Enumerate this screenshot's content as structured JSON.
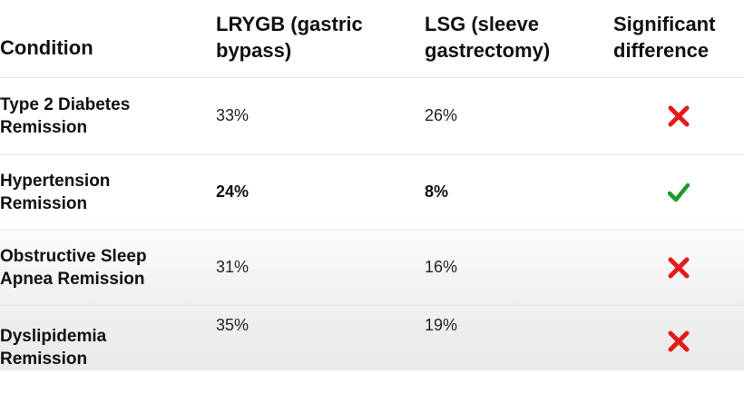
{
  "table": {
    "headers": {
      "condition": "Condition",
      "lrygb_line1": "LRYGB (gastric",
      "lrygb_line2": "bypass)",
      "lsg_line1": "LSG (sleeve",
      "lsg_line2": "gastrectomy)",
      "sig_line1": "Significant",
      "sig_line2": "difference"
    },
    "rows": [
      {
        "condition_line1": "Type 2 Diabetes",
        "condition_line2": "Remission",
        "lrygb": "33%",
        "lsg": "26%",
        "significant": false,
        "icon": "cross-icon"
      },
      {
        "condition_line1": "Hypertension",
        "condition_line2": "Remission",
        "lrygb": "24%",
        "lsg": "8%",
        "significant": true,
        "icon": "check-icon"
      },
      {
        "condition_line1": "Obstructive Sleep",
        "condition_line2": "Apnea Remission",
        "lrygb": "31%",
        "lsg": "16%",
        "significant": false,
        "icon": "cross-icon"
      },
      {
        "condition_line1": "Dyslipidemia",
        "condition_line2": "Remission",
        "lrygb": "35%",
        "lsg": "19%",
        "significant": false,
        "icon": "cross-icon"
      }
    ]
  },
  "colors": {
    "cross": "#e31b1b",
    "check": "#1f9a2a"
  }
}
